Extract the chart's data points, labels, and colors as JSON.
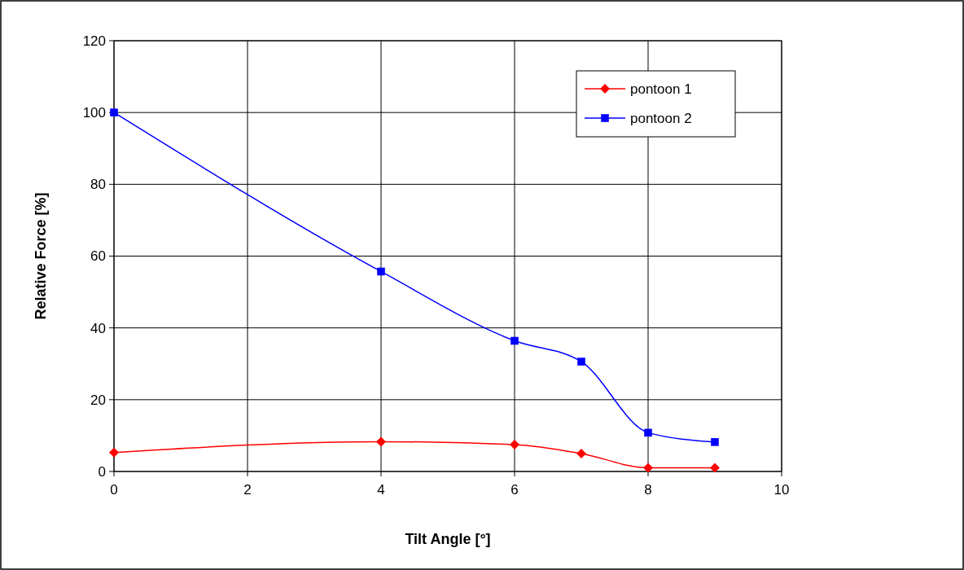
{
  "chart_data": {
    "type": "line",
    "xlabel": "Tilt Angle  [°]",
    "ylabel": "Relative Force [%]",
    "xlim": [
      0,
      10
    ],
    "xticks": [
      0,
      2,
      4,
      6,
      8,
      10
    ],
    "ylim": [
      0,
      120
    ],
    "yticks": [
      0,
      20,
      40,
      60,
      80,
      100,
      120
    ],
    "grid": true,
    "legend": "top right",
    "x": [
      0,
      4,
      6,
      7,
      8,
      9
    ],
    "series": [
      {
        "name": "pontoon 1",
        "color": "#ff0000",
        "marker": "diamond",
        "values": [
          5.3,
          8.3,
          7.5,
          5,
          1,
          1
        ]
      },
      {
        "name": "pontoon 2",
        "color": "#0000ff",
        "marker": "square",
        "values": [
          100,
          55.7,
          36.4,
          30.6,
          10.8,
          8.2
        ]
      }
    ]
  }
}
